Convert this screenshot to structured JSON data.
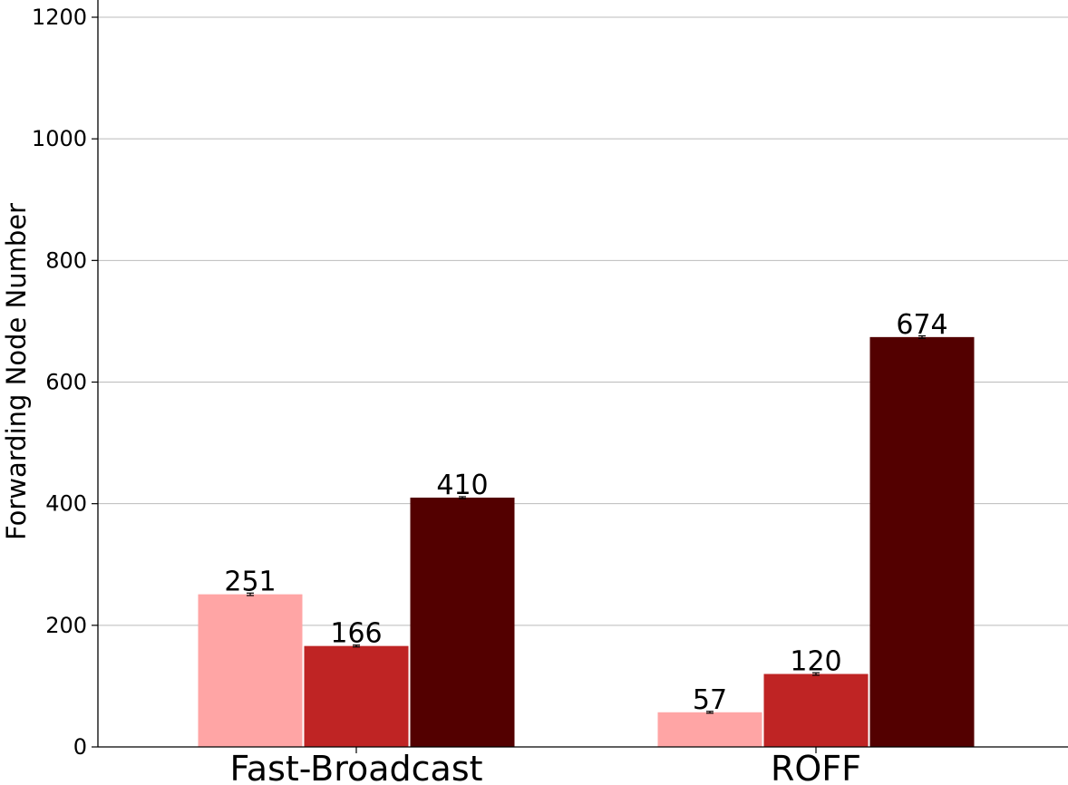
{
  "chart_data": {
    "type": "bar",
    "title": "",
    "xlabel": "",
    "ylabel": "Forwarding Node Number",
    "ylim": [
      0,
      1200
    ],
    "yticks": [
      0,
      200,
      400,
      600,
      800,
      1000,
      1200
    ],
    "grid": "horizontal",
    "legend": "none",
    "categories": [
      "Fast-Broadcast",
      "ROFF"
    ],
    "series": [
      {
        "color": "#ffa5a5",
        "values": [
          251,
          57
        ],
        "labels": [
          "251",
          "57"
        ],
        "error": [
          2,
          1.5
        ]
      },
      {
        "color": "#bf2424",
        "values": [
          166,
          120
        ],
        "labels": [
          "166",
          "120"
        ],
        "error": [
          1.5,
          2
        ]
      },
      {
        "color": "#530000",
        "values": [
          410,
          674
        ],
        "labels": [
          "410",
          "674"
        ],
        "error": [
          1.5,
          2
        ]
      }
    ]
  }
}
